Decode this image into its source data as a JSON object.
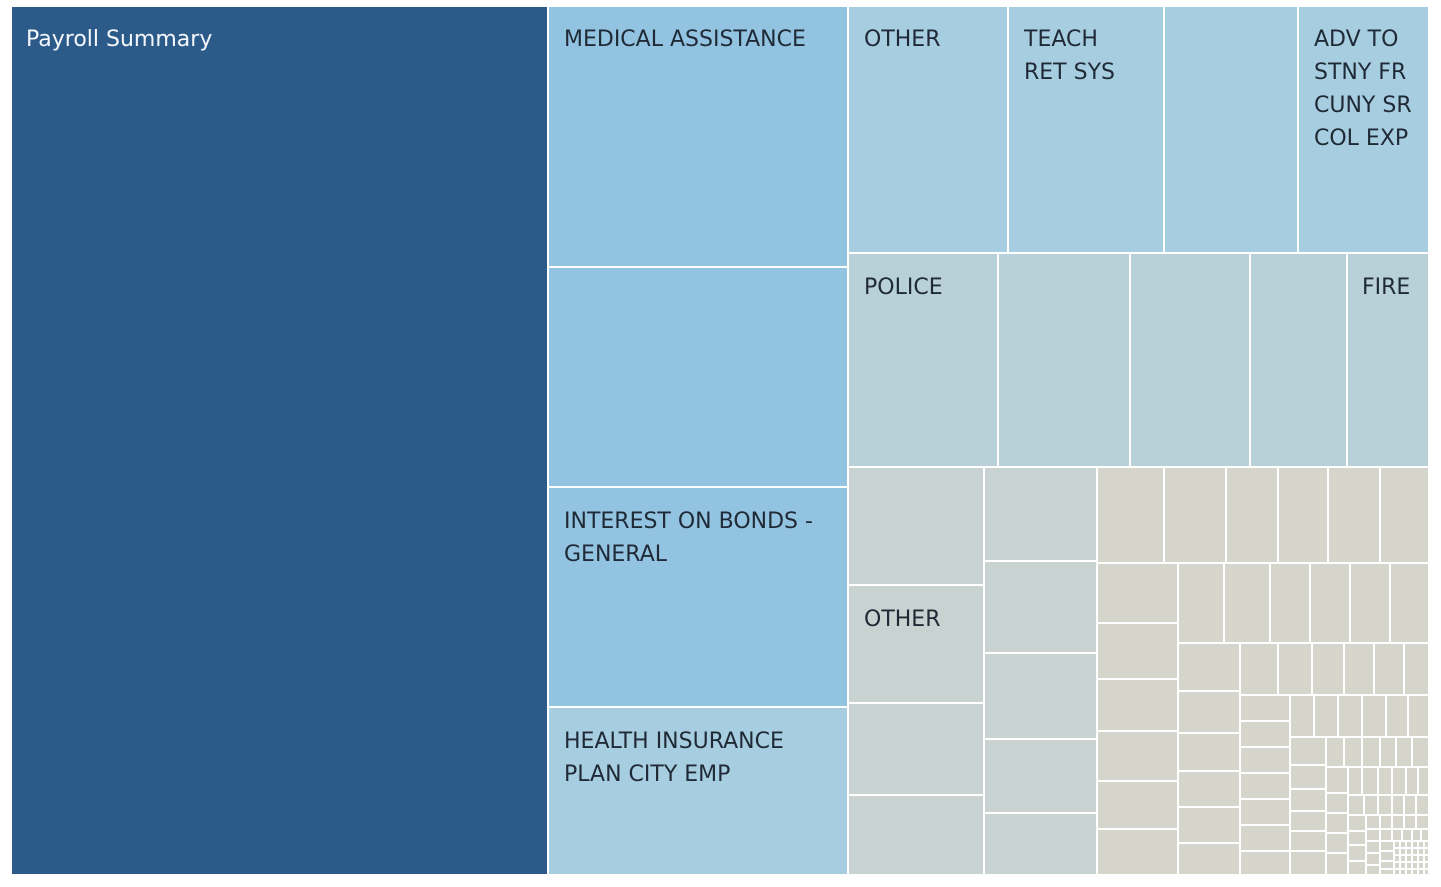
{
  "chart_data": {
    "type": "treemap",
    "title": "",
    "legend": "none",
    "colors": {
      "darkest": "#2c5b8a",
      "dark_blue": "#92c3e0",
      "mid_blue": "#a7cde0",
      "gray_blue": "#b8d0d8",
      "gray": "#c8d2d1",
      "light_gray": "#d5d5cc",
      "border": "#ffffff"
    },
    "labels": {
      "payroll": "Payroll Summary",
      "medical": "MEDICAL ASSISTANCE",
      "interest": "INTEREST ON BONDS - GENERAL",
      "health": "HEALTH INSURANCE PLAN CITY EMP",
      "other1": "OTHER",
      "teach": "TEACH RET SYS",
      "adv": "ADV TO STNY FR CUNY SR COL EXP",
      "police": "POLICE",
      "fire": "FIRE",
      "other2": "OTHER"
    }
  }
}
